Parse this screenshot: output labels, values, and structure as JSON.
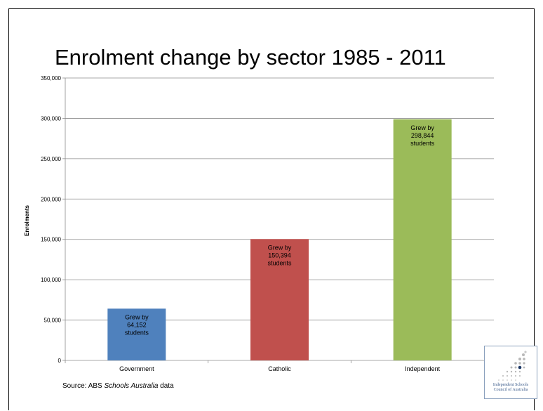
{
  "chart_data": {
    "type": "bar",
    "title": "Enrolment change by sector 1985 - 2011",
    "xlabel": "",
    "ylabel": "Enrolments",
    "ylim": [
      0,
      350000
    ],
    "yticks": [
      "0",
      "50,000",
      "100,000",
      "150,000",
      "200,000",
      "250,000",
      "300,000",
      "350,000"
    ],
    "grid": true,
    "categories": [
      "Government",
      "Catholic",
      "Independent"
    ],
    "values": [
      64152,
      150394,
      298844
    ],
    "colors": [
      "#4f81bd",
      "#c0504d",
      "#9bbb59"
    ],
    "bar_labels": [
      [
        "Grew by",
        "64,152",
        "students"
      ],
      [
        "Grew by",
        "150,394",
        "students"
      ],
      [
        "Grew by",
        "298,844",
        "students"
      ]
    ]
  },
  "source": {
    "prefix": "Source: ABS ",
    "italic": "Schools Australia",
    "suffix": " data"
  },
  "logo": {
    "line1": "Independent Schools",
    "line2": "Council of Australia"
  }
}
